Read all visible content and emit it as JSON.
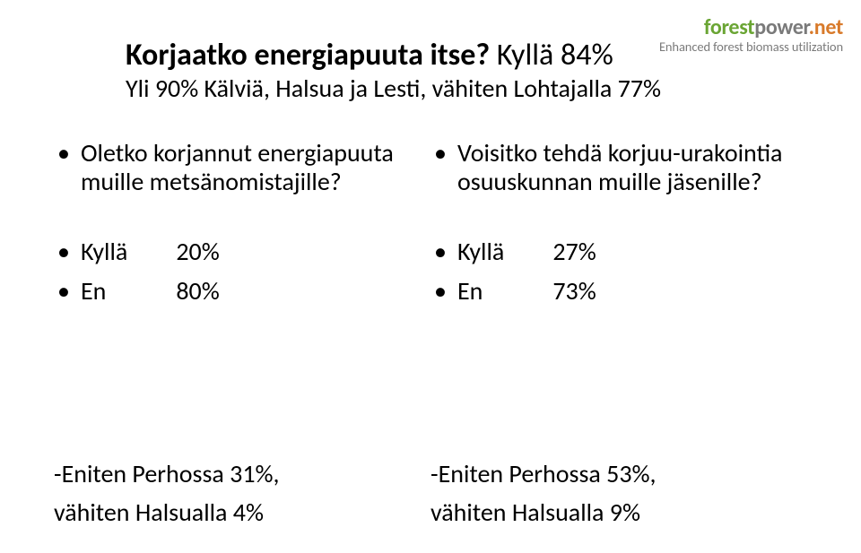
{
  "logo": {
    "part1": "forest",
    "part2": "power",
    "part3": ".net",
    "sub": "Enhanced forest biomass utilization",
    "colors": {
      "forest": "#6aa534",
      "power": "#7a7a7a",
      "dotnet": "#d87a2a",
      "sub": "#7a7a7a"
    }
  },
  "title": {
    "line1": "Korjaatko energiapuuta itse?",
    "line2part1": "Kyllä 84%",
    "line2part2": "Yli 90% Kälviä, Halsua ja Lesti, vähiten Lohtajalla 77%"
  },
  "left": {
    "question": "Oletko korjannut energiapuuta muille metsänomistajille?",
    "answers": [
      {
        "label": "Kyllä",
        "value": "20%"
      },
      {
        "label": "En",
        "value": "80%"
      }
    ],
    "footer_line1": "-Eniten Perhossa 31%,",
    "footer_line2": "vähiten Halsualla 4%"
  },
  "right": {
    "question": "Voisitko tehdä korjuu-urakointia osuuskunnan muille jäsenille?",
    "answers": [
      {
        "label": "Kyllä",
        "value": "27%"
      },
      {
        "label": "En",
        "value": "73%"
      }
    ],
    "footer_line1": "-Eniten Perhossa 53%,",
    "footer_line2": "vähiten Halsualla 9%"
  },
  "style": {
    "background": "#ffffff",
    "text_color": "#000000",
    "title_fontsize": 34,
    "body_fontsize": 28,
    "font_family": "Calibri"
  }
}
